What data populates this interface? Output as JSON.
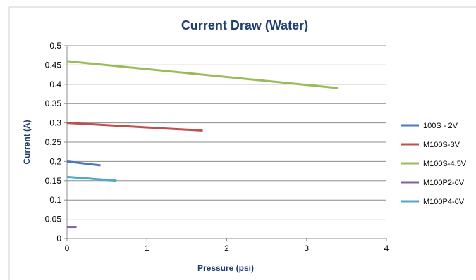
{
  "chart_data": {
    "type": "line",
    "title": "Current Draw (Water)",
    "xlabel": "Pressure (psi)",
    "ylabel": "Current (A)",
    "xlim": [
      0,
      4
    ],
    "ylim": [
      0,
      0.5
    ],
    "x_ticks": [
      "0",
      "1",
      "2",
      "3",
      "4"
    ],
    "y_ticks": [
      "0",
      "0.05",
      "0.1",
      "0.15",
      "0.2",
      "0.25",
      "0.3",
      "0.35",
      "0.4",
      "0.45",
      "0.5"
    ],
    "grid": "horizontal",
    "legend_position": "right",
    "series": [
      {
        "name": "100S - 2V",
        "color": "#4a7bbf",
        "x": [
          0,
          0.42
        ],
        "y": [
          0.2,
          0.19
        ]
      },
      {
        "name": "M100S-3V",
        "color": "#c0504d",
        "x": [
          0,
          1.7
        ],
        "y": [
          0.3,
          0.28
        ]
      },
      {
        "name": "M100S-4.5V",
        "color": "#9bbb59",
        "x": [
          0,
          3.4
        ],
        "y": [
          0.46,
          0.39
        ]
      },
      {
        "name": "M100P2-6V",
        "color": "#7f64a2",
        "x": [
          0,
          0.12
        ],
        "y": [
          0.03,
          0.03
        ]
      },
      {
        "name": "M100P4-6V",
        "color": "#4bacc6",
        "x": [
          0,
          0.62
        ],
        "y": [
          0.16,
          0.15
        ]
      }
    ]
  }
}
